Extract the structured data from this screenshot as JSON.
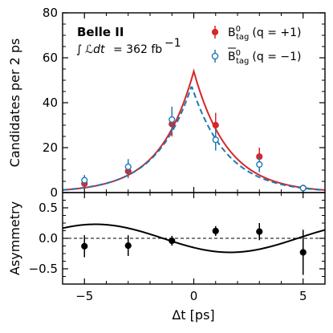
{
  "chart_data": [
    {
      "type": "scatter",
      "panel": "top",
      "xlabel": "Δt [ps]",
      "ylabel": "Candidates per 2 ps",
      "xlim": [
        -6,
        6
      ],
      "ylim": [
        0,
        80
      ],
      "xticks": [
        -5,
        0,
        5
      ],
      "yticks": [
        0,
        20,
        40,
        60,
        80
      ],
      "annotation_experiment": "Belle II",
      "annotation_lumi_value": "= 362 fb",
      "annotation_lumi_exp": "−1",
      "legend_position": "top-right",
      "series": [
        {
          "name": "B0tag (q = +1)",
          "legend_base": "B",
          "legend_sup": "0",
          "legend_sub": "tag",
          "legend_rest": "(q = +1)",
          "bar": false,
          "color": "#d62728",
          "marker": "filled-circle",
          "x": [
            -5,
            -3,
            -1,
            1,
            3,
            5
          ],
          "y": [
            4,
            9.5,
            30.5,
            30,
            16,
            2
          ],
          "yerr": [
            2,
            3,
            5.5,
            5.5,
            4,
            1.4
          ],
          "fit_style": "solid"
        },
        {
          "name": "anti-B0tag (q = −1)",
          "legend_base": "B",
          "legend_sup": "0",
          "legend_sub": "tag",
          "legend_rest": "(q = −1)",
          "bar": true,
          "color": "#1f77b4",
          "marker": "open-circle",
          "x": [
            -5,
            -3,
            -1,
            1,
            3,
            5
          ],
          "y": [
            5.5,
            11.5,
            32.5,
            23.5,
            12.5,
            2
          ],
          "yerr": [
            2.3,
            3.4,
            5.7,
            4.8,
            3.5,
            1.4
          ],
          "fit_style": "dashed"
        }
      ],
      "fits": [
        {
          "series": "B0tag (q = +1)",
          "peak": 54,
          "center": 0,
          "tau": 1.55,
          "color": "#d62728",
          "style": "solid"
        },
        {
          "series": "anti-B0tag (q = −1)",
          "peak": 47.5,
          "center": -0.1,
          "tau": 1.6,
          "color": "#1f77b4",
          "style": "dashed"
        }
      ]
    },
    {
      "type": "scatter",
      "panel": "bottom",
      "xlabel": "Δt [ps]",
      "ylabel": "Asymmetry",
      "xlim": [
        -6,
        6
      ],
      "ylim": [
        -0.75,
        0.75
      ],
      "xticks": [
        -5,
        0,
        5
      ],
      "yticks": [
        -0.5,
        0.0,
        0.5
      ],
      "ytick_labels": [
        "−0.5",
        "0.0",
        "0.5"
      ],
      "xtick_labels": [
        "−5",
        "0",
        "5"
      ],
      "reference_line": 0,
      "series": [
        {
          "name": "Asymmetry",
          "color": "#000000",
          "x": [
            -5,
            -3,
            -1,
            1,
            3,
            5
          ],
          "y": [
            -0.13,
            -0.12,
            -0.04,
            0.12,
            0.11,
            -0.23
          ],
          "yerr": [
            0.18,
            0.17,
            0.08,
            0.08,
            0.14,
            0.37
          ]
        }
      ],
      "fit": {
        "amplitude": 0.23,
        "omega": 0.51,
        "phase": 0.85,
        "color": "#000000"
      }
    }
  ]
}
